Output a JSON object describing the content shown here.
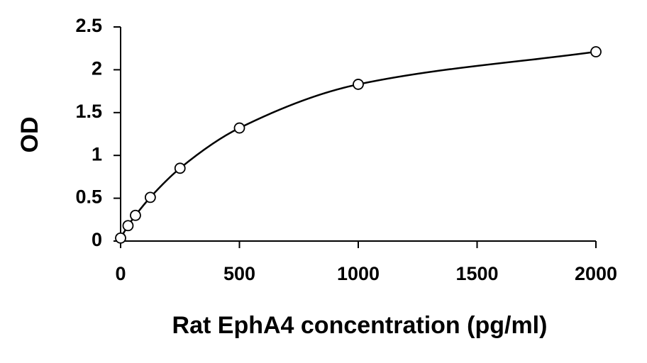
{
  "chart_data": {
    "type": "scatter",
    "title": "",
    "xlabel": "Rat EphA4 concentration (pg/ml)",
    "ylabel": "OD",
    "xlim": [
      0,
      2000
    ],
    "ylim": [
      0,
      2.5
    ],
    "xticks": [
      0,
      500,
      1000,
      1500,
      2000
    ],
    "yticks": [
      0,
      0.5,
      1,
      1.5,
      2,
      2.5
    ],
    "xtick_labels": [
      "0",
      "500",
      "1000",
      "1500",
      "2000"
    ],
    "ytick_labels": [
      "0",
      "0.5",
      "1",
      "1.5",
      "2",
      "2.5"
    ],
    "grid": false,
    "legend": "none",
    "series": [
      {
        "markers": "open-circle",
        "curve": "smooth-fit",
        "color": "#000000",
        "x": [
          0,
          31.25,
          62.5,
          125,
          250,
          500,
          1000,
          2000
        ],
        "y": [
          0.035,
          0.18,
          0.3,
          0.51,
          0.85,
          1.32,
          1.83,
          2.21
        ]
      }
    ]
  }
}
